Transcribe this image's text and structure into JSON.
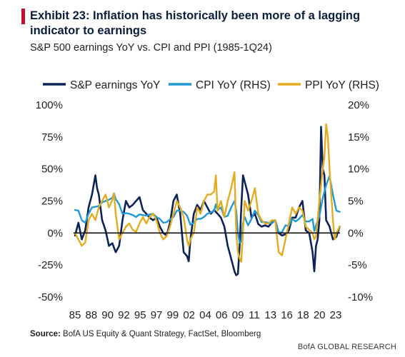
{
  "header": {
    "title": "Exhibit 23: Inflation has historically been more of a lagging indicator to earnings",
    "subtitle": "S&P 500 earnings YoY vs. CPI and PPI (1985-1Q24)"
  },
  "footer": {
    "source_label": "Source:",
    "source_text": " BofA US Equity & Quant Strategy, FactSet, Bloomberg",
    "brand": "BofA GLOBAL RESEARCH"
  },
  "colors": {
    "accent": "#c8102e",
    "earnings": "#0d2358",
    "cpi": "#1f9ad6",
    "ppi": "#e3ac1f",
    "zero_line": "#111111"
  },
  "chart_data": {
    "type": "line",
    "title": "",
    "x_tick_labels": [
      "85",
      "88",
      "90",
      "92",
      "95",
      "97",
      "99",
      "02",
      "04",
      "06",
      "09",
      "11",
      "13",
      "16",
      "18",
      "20",
      "23"
    ],
    "xlim": [
      1985,
      2024.25
    ],
    "ylim_left": [
      -0.5,
      1.0
    ],
    "ylim_right": [
      -0.1,
      0.2
    ],
    "y_left_ticks": [
      "100%",
      "75%",
      "50%",
      "25%",
      "0%",
      "-25%",
      "-50%"
    ],
    "y_right_ticks": [
      "20%",
      "15%",
      "10%",
      "5%",
      "0%",
      "-5%",
      "-10%"
    ],
    "grid": false,
    "legend_position": "top",
    "series": [
      {
        "name": "S&P earnings YoY",
        "axis": "left",
        "color": "#0d2358",
        "x": [
          1985.0,
          1985.5,
          1986.0,
          1986.5,
          1987.0,
          1987.5,
          1988.0,
          1988.25,
          1988.5,
          1989.0,
          1989.5,
          1990.0,
          1990.5,
          1991.0,
          1991.5,
          1992.0,
          1992.5,
          1993.0,
          1993.5,
          1994.0,
          1994.5,
          1995.0,
          1995.5,
          1996.0,
          1996.5,
          1997.0,
          1997.5,
          1998.0,
          1998.5,
          1999.0,
          1999.5,
          2000.0,
          2000.5,
          2001.0,
          2001.5,
          2001.75,
          2002.0,
          2002.5,
          2003.0,
          2003.5,
          2004.0,
          2004.5,
          2005.0,
          2005.5,
          2006.0,
          2006.5,
          2007.0,
          2007.5,
          2008.0,
          2008.5,
          2008.75,
          2009.0,
          2009.25,
          2009.5,
          2009.75,
          2010.0,
          2010.5,
          2011.0,
          2011.5,
          2012.0,
          2012.5,
          2013.0,
          2013.5,
          2014.0,
          2014.5,
          2015.0,
          2015.5,
          2016.0,
          2016.5,
          2017.0,
          2017.5,
          2018.0,
          2018.5,
          2019.0,
          2019.5,
          2020.0,
          2020.25,
          2020.5,
          2020.75,
          2021.0,
          2021.25,
          2021.5,
          2021.75,
          2022.0,
          2022.5,
          2023.0,
          2023.5,
          2024.0
        ],
        "y": [
          -0.02,
          0.08,
          -0.05,
          0.02,
          0.2,
          0.3,
          0.45,
          0.35,
          0.3,
          0.1,
          0.02,
          -0.1,
          -0.08,
          -0.15,
          -0.1,
          0.1,
          0.25,
          0.2,
          0.22,
          0.25,
          0.28,
          0.18,
          0.15,
          0.12,
          0.1,
          0.12,
          0.05,
          0.0,
          -0.02,
          0.08,
          0.25,
          0.3,
          0.15,
          -0.15,
          -0.18,
          -0.22,
          -0.05,
          0.15,
          0.22,
          0.18,
          0.25,
          0.2,
          0.15,
          0.18,
          0.15,
          0.12,
          0.05,
          -0.1,
          -0.2,
          -0.3,
          -0.33,
          -0.32,
          -0.1,
          0.2,
          0.45,
          0.4,
          0.3,
          0.12,
          0.15,
          0.07,
          0.05,
          0.06,
          0.05,
          0.08,
          0.1,
          0.0,
          -0.02,
          -0.01,
          0.02,
          0.12,
          0.12,
          0.2,
          0.25,
          0.02,
          0.0,
          -0.15,
          -0.3,
          -0.1,
          -0.05,
          0.1,
          0.83,
          0.5,
          0.45,
          0.1,
          0.05,
          -0.05,
          -0.03,
          0.05
        ]
      },
      {
        "name": "CPI YoY (RHS)",
        "axis": "right",
        "color": "#1f9ad6",
        "x": [
          1985.0,
          1985.5,
          1986.0,
          1986.5,
          1987.0,
          1987.5,
          1988.0,
          1988.5,
          1989.0,
          1989.5,
          1990.0,
          1990.5,
          1990.75,
          1991.0,
          1991.5,
          1992.0,
          1992.5,
          1993.0,
          1993.5,
          1994.0,
          1994.5,
          1995.0,
          1995.5,
          1996.0,
          1996.5,
          1997.0,
          1997.5,
          1998.0,
          1998.5,
          1999.0,
          1999.5,
          2000.0,
          2000.5,
          2001.0,
          2001.5,
          2002.0,
          2002.5,
          2003.0,
          2003.5,
          2004.0,
          2004.5,
          2005.0,
          2005.5,
          2005.75,
          2006.0,
          2006.5,
          2007.0,
          2007.5,
          2008.0,
          2008.5,
          2008.75,
          2009.0,
          2009.25,
          2009.5,
          2009.75,
          2010.0,
          2010.5,
          2011.0,
          2011.5,
          2012.0,
          2012.5,
          2013.0,
          2013.5,
          2014.0,
          2014.5,
          2015.0,
          2015.5,
          2016.0,
          2016.5,
          2017.0,
          2017.5,
          2018.0,
          2018.5,
          2019.0,
          2019.5,
          2020.0,
          2020.25,
          2020.5,
          2021.0,
          2021.5,
          2022.0,
          2022.5,
          2023.0,
          2023.5,
          2024.0
        ],
        "y": [
          0.036,
          0.035,
          0.02,
          0.016,
          0.03,
          0.04,
          0.041,
          0.042,
          0.048,
          0.05,
          0.052,
          0.055,
          0.062,
          0.053,
          0.045,
          0.03,
          0.031,
          0.03,
          0.028,
          0.025,
          0.029,
          0.028,
          0.027,
          0.029,
          0.03,
          0.025,
          0.022,
          0.016,
          0.017,
          0.021,
          0.025,
          0.035,
          0.035,
          0.033,
          0.027,
          0.013,
          0.016,
          0.022,
          0.022,
          0.025,
          0.03,
          0.032,
          0.035,
          0.045,
          0.036,
          0.04,
          0.025,
          0.027,
          0.04,
          0.05,
          0.035,
          0.0,
          -0.015,
          -0.013,
          0.015,
          0.025,
          0.012,
          0.022,
          0.035,
          0.028,
          0.017,
          0.017,
          0.016,
          0.015,
          0.02,
          0.001,
          0.001,
          0.012,
          0.011,
          0.022,
          0.018,
          0.022,
          0.028,
          0.018,
          0.018,
          0.022,
          0.003,
          0.012,
          0.026,
          0.055,
          0.075,
          0.089,
          0.06,
          0.035,
          0.033
        ]
      },
      {
        "name": "PPI YoY (RHS)",
        "axis": "right",
        "color": "#e3ac1f",
        "x": [
          1985.0,
          1985.5,
          1986.0,
          1986.5,
          1987.0,
          1987.5,
          1988.0,
          1988.5,
          1989.0,
          1989.5,
          1990.0,
          1990.5,
          1990.75,
          1991.0,
          1991.5,
          1992.0,
          1992.5,
          1993.0,
          1993.5,
          1994.0,
          1994.5,
          1995.0,
          1995.5,
          1996.0,
          1996.5,
          1997.0,
          1997.5,
          1998.0,
          1998.5,
          1999.0,
          1999.5,
          2000.0,
          2000.5,
          2001.0,
          2001.5,
          2001.75,
          2002.0,
          2002.5,
          2003.0,
          2003.5,
          2004.0,
          2004.5,
          2005.0,
          2005.5,
          2005.75,
          2006.0,
          2006.5,
          2007.0,
          2007.5,
          2008.0,
          2008.5,
          2008.75,
          2009.0,
          2009.25,
          2009.5,
          2010.0,
          2010.5,
          2011.0,
          2011.5,
          2012.0,
          2012.5,
          2013.0,
          2013.5,
          2014.0,
          2014.5,
          2015.0,
          2015.5,
          2016.0,
          2016.5,
          2017.0,
          2017.5,
          2018.0,
          2018.5,
          2019.0,
          2019.5,
          2020.0,
          2020.25,
          2020.5,
          2021.0,
          2021.5,
          2021.75,
          2022.0,
          2022.25,
          2022.5,
          2023.0,
          2023.25,
          2023.5,
          2024.0
        ],
        "y": [
          0.0,
          -0.01,
          -0.02,
          -0.015,
          0.02,
          0.03,
          0.02,
          0.04,
          0.05,
          0.06,
          0.04,
          0.052,
          0.062,
          0.03,
          -0.01,
          0.0,
          0.01,
          0.015,
          0.005,
          0.002,
          0.015,
          0.025,
          0.015,
          0.025,
          0.03,
          0.02,
          0.0,
          -0.01,
          -0.005,
          0.01,
          0.03,
          0.05,
          0.04,
          0.025,
          -0.01,
          -0.02,
          -0.01,
          0.0,
          0.04,
          0.03,
          0.05,
          0.06,
          0.06,
          0.065,
          0.09,
          0.035,
          0.05,
          0.025,
          0.05,
          0.07,
          0.095,
          0.0,
          -0.03,
          -0.04,
          -0.045,
          0.05,
          0.035,
          0.05,
          0.07,
          0.03,
          0.02,
          0.015,
          0.015,
          0.02,
          0.02,
          -0.03,
          -0.035,
          -0.01,
          0.015,
          0.04,
          0.03,
          0.04,
          0.035,
          0.01,
          0.005,
          0.0,
          -0.01,
          -0.005,
          0.05,
          0.1,
          0.12,
          0.17,
          0.15,
          0.1,
          0.02,
          -0.01,
          0.0,
          0.01
        ]
      }
    ]
  }
}
